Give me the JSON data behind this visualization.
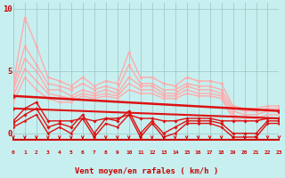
{
  "bg_color": "#c8efef",
  "grid_color": "#a0cccc",
  "xlabel": "Vent moyen/en rafales ( km/h )",
  "yticks": [
    0,
    5,
    10
  ],
  "xticks": [
    0,
    1,
    2,
    3,
    4,
    5,
    6,
    7,
    8,
    9,
    10,
    11,
    12,
    13,
    14,
    15,
    16,
    17,
    18,
    19,
    20,
    21,
    22,
    23
  ],
  "xlim": [
    0,
    23
  ],
  "ylim": [
    -0.5,
    10.5
  ],
  "series": [
    {
      "x": [
        0,
        1,
        2,
        3,
        4,
        5,
        6,
        7,
        8,
        9,
        10,
        11,
        12,
        13,
        14,
        15,
        16,
        17,
        18,
        19,
        20,
        21,
        22,
        23
      ],
      "y": [
        4.0,
        9.3,
        7.0,
        4.5,
        4.2,
        3.8,
        4.5,
        3.8,
        4.2,
        4.0,
        6.5,
        4.5,
        4.5,
        4.0,
        3.8,
        4.5,
        4.2,
        4.2,
        4.0,
        2.2,
        2.0,
        2.0,
        2.2,
        2.2
      ],
      "color": "#ffaaaa",
      "lw": 1.0,
      "marker": "o",
      "ms": 2.0
    },
    {
      "x": [
        0,
        1,
        2,
        3,
        4,
        5,
        6,
        7,
        8,
        9,
        10,
        11,
        12,
        13,
        14,
        15,
        16,
        17,
        18,
        19,
        20,
        21,
        22,
        23
      ],
      "y": [
        3.8,
        7.0,
        5.5,
        4.0,
        3.8,
        3.5,
        4.0,
        3.5,
        3.8,
        3.5,
        5.5,
        4.0,
        4.0,
        3.5,
        3.5,
        4.0,
        3.8,
        3.8,
        3.5,
        2.0,
        1.8,
        1.8,
        2.0,
        2.0
      ],
      "color": "#ffaaaa",
      "lw": 1.0,
      "marker": "o",
      "ms": 2.0
    },
    {
      "x": [
        0,
        1,
        2,
        3,
        4,
        5,
        6,
        7,
        8,
        9,
        10,
        11,
        12,
        13,
        14,
        15,
        16,
        17,
        18,
        19,
        20,
        21,
        22,
        23
      ],
      "y": [
        3.5,
        6.0,
        5.0,
        3.5,
        3.5,
        3.0,
        3.5,
        3.2,
        3.5,
        3.2,
        4.5,
        3.8,
        3.8,
        3.2,
        3.2,
        3.8,
        3.5,
        3.5,
        3.2,
        1.8,
        1.5,
        1.5,
        1.8,
        1.8
      ],
      "color": "#ffaaaa",
      "lw": 1.0,
      "marker": "o",
      "ms": 2.0
    },
    {
      "x": [
        0,
        1,
        2,
        3,
        4,
        5,
        6,
        7,
        8,
        9,
        10,
        11,
        12,
        13,
        14,
        15,
        16,
        17,
        18,
        19,
        20,
        21,
        22,
        23
      ],
      "y": [
        3.0,
        5.2,
        4.2,
        3.2,
        3.0,
        2.8,
        3.2,
        3.0,
        3.2,
        3.0,
        4.0,
        3.5,
        3.5,
        3.0,
        3.0,
        3.5,
        3.2,
        3.2,
        3.0,
        1.5,
        1.2,
        1.2,
        1.5,
        1.5
      ],
      "color": "#ffaaaa",
      "lw": 1.0,
      "marker": "o",
      "ms": 1.5
    },
    {
      "x": [
        0,
        1,
        2,
        3,
        4,
        5,
        6,
        7,
        8,
        9,
        10,
        11,
        12,
        13,
        14,
        15,
        16,
        17,
        18,
        19,
        20,
        21,
        22,
        23
      ],
      "y": [
        2.5,
        4.5,
        3.5,
        2.8,
        2.5,
        2.5,
        3.0,
        2.8,
        3.0,
        2.8,
        3.5,
        3.2,
        3.2,
        2.8,
        2.8,
        3.2,
        3.0,
        3.0,
        2.8,
        1.2,
        1.0,
        1.0,
        1.2,
        1.2
      ],
      "color": "#ffaaaa",
      "lw": 1.0,
      "marker": "o",
      "ms": 1.5
    },
    {
      "x": [
        0,
        23
      ],
      "y": [
        3.0,
        1.8
      ],
      "color": "#dd1111",
      "lw": 1.8,
      "marker": "D",
      "ms": 2.5
    },
    {
      "x": [
        0,
        23
      ],
      "y": [
        2.0,
        1.2
      ],
      "color": "#dd1111",
      "lw": 1.5,
      "marker": "D",
      "ms": 2.0
    },
    {
      "x": [
        0,
        1,
        2,
        3,
        4,
        5,
        6,
        7,
        8,
        9,
        10,
        11,
        12,
        13,
        14,
        15,
        16,
        17,
        18,
        19,
        20,
        21,
        22,
        23
      ],
      "y": [
        1.0,
        2.0,
        2.5,
        1.0,
        1.0,
        1.0,
        1.2,
        1.0,
        1.2,
        1.2,
        1.5,
        1.2,
        1.2,
        1.0,
        1.0,
        1.2,
        1.2,
        1.2,
        1.0,
        1.0,
        1.0,
        1.0,
        1.2,
        1.2
      ],
      "color": "#dd1111",
      "lw": 1.0,
      "marker": "D",
      "ms": 1.8
    },
    {
      "x": [
        0,
        1,
        2,
        3,
        4,
        5,
        6,
        7,
        8,
        9,
        10,
        11,
        12,
        13,
        14,
        15,
        16,
        17,
        18,
        19,
        20,
        21,
        22,
        23
      ],
      "y": [
        0.8,
        1.5,
        2.0,
        0.5,
        0.8,
        0.5,
        1.5,
        0.0,
        1.2,
        1.0,
        1.8,
        0.0,
        1.0,
        0.0,
        0.5,
        1.0,
        1.0,
        1.0,
        0.8,
        0.0,
        0.0,
        0.0,
        1.0,
        1.0
      ],
      "color": "#dd1111",
      "lw": 1.0,
      "marker": "D",
      "ms": 1.8
    },
    {
      "x": [
        0,
        1,
        2,
        3,
        4,
        5,
        6,
        7,
        8,
        9,
        10,
        11,
        12,
        13,
        14,
        15,
        16,
        17,
        18,
        19,
        20,
        21,
        22,
        23
      ],
      "y": [
        0.5,
        1.0,
        1.5,
        0.0,
        0.5,
        0.0,
        1.2,
        -0.3,
        0.8,
        0.5,
        1.5,
        -0.3,
        0.8,
        -0.3,
        0.0,
        0.8,
        0.8,
        0.8,
        0.5,
        -0.3,
        -0.3,
        -0.3,
        0.8,
        0.8
      ],
      "color": "#dd1111",
      "lw": 1.0,
      "marker": "D",
      "ms": 1.5
    }
  ],
  "tick_color": "#cc0000",
  "axis_color": "#cc0000"
}
